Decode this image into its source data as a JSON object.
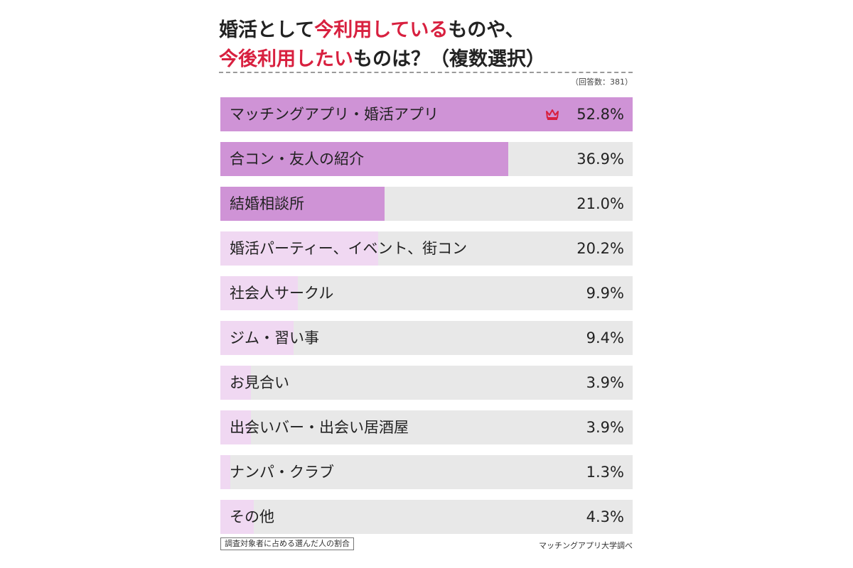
{
  "colors": {
    "highlight": "#d8203f",
    "bar_strong": "#cf93d6",
    "bar_light": "#f0d8f2",
    "track": "#e8e8e8"
  },
  "chart_data": {
    "type": "bar",
    "orientation": "horizontal",
    "title_parts": [
      {
        "text": "婚活として",
        "highlight": false
      },
      {
        "text": "今利用している",
        "highlight": true
      },
      {
        "text": "ものや、",
        "highlight": false
      },
      {
        "text": "今後利用したい",
        "highlight": true
      },
      {
        "text": "ものは？（複数選択）",
        "highlight": false
      }
    ],
    "respondents": "（回答数：381）",
    "categories": [
      "マッチングアプリ・婚活アプリ",
      "合コン・友人の紹介",
      "結婚相談所",
      "婚活パーティー、イベント、街コン",
      "社会人サークル",
      "ジム・習い事",
      "お見合い",
      "出会いバー・出会い居酒屋",
      "ナンパ・クラブ",
      "その他"
    ],
    "values": [
      52.8,
      36.9,
      21.0,
      20.2,
      9.9,
      9.4,
      3.9,
      3.9,
      1.3,
      4.3
    ],
    "value_labels": [
      "52.8%",
      "36.9%",
      "21.0%",
      "20.2%",
      "9.9%",
      "9.4%",
      "3.9%",
      "3.9%",
      "1.3%",
      "4.3%"
    ],
    "highlighted_top": 3,
    "top_icon": "crown-icon",
    "xlim": [
      0,
      52.8
    ],
    "footnote": "調査対象者に占める選んだ人の割合",
    "source": "マッチングアプリ大学調べ"
  }
}
